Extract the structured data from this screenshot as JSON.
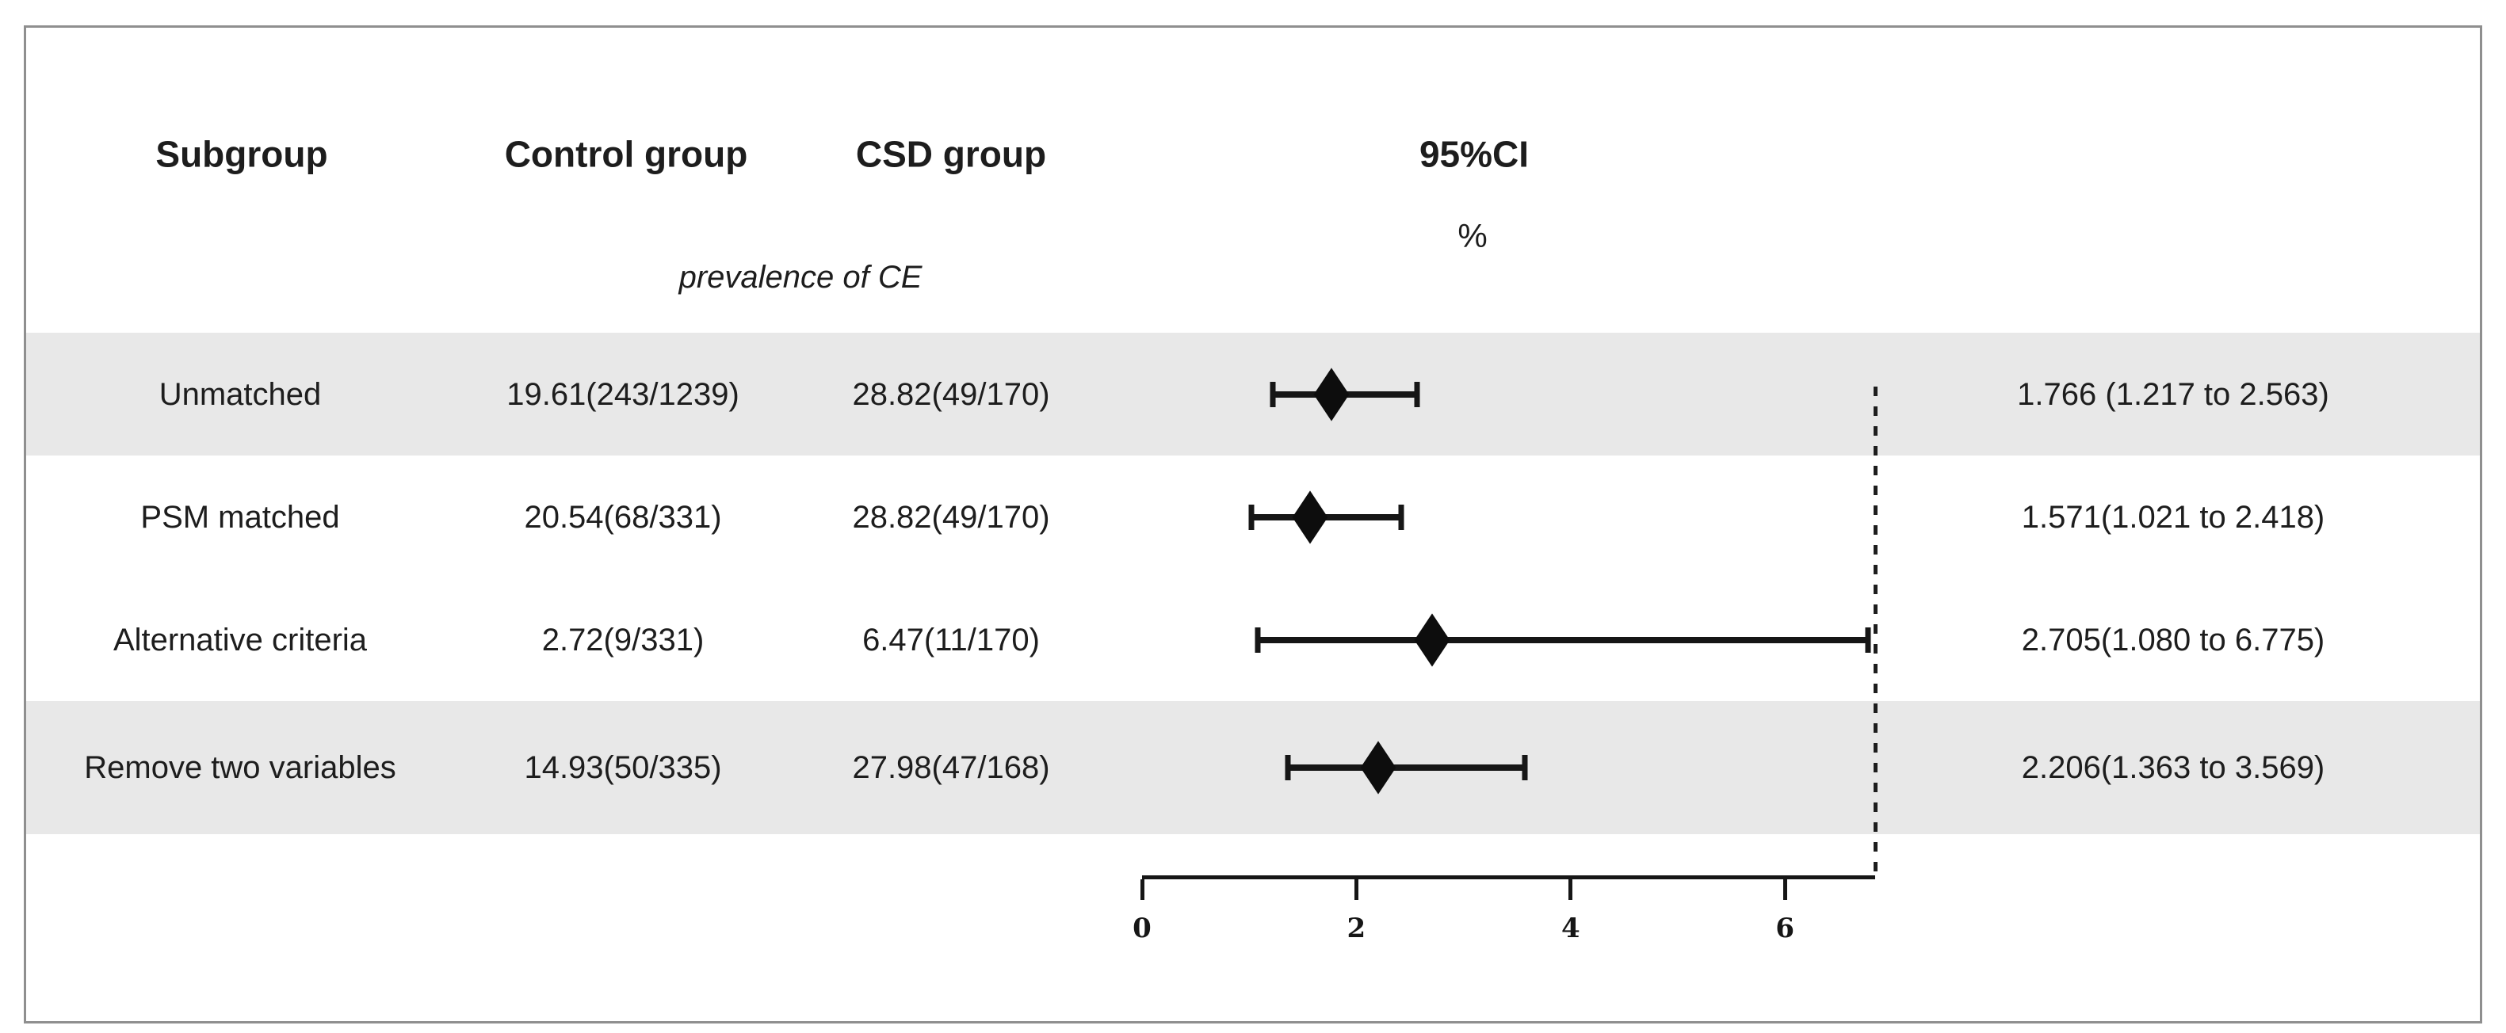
{
  "header": {
    "subgroup": "Subgroup",
    "control": "Control group",
    "csd": "CSD group",
    "ci": "95%CI",
    "sub_prevalence": "prevalence of CE",
    "sub_percent": "%"
  },
  "chart_data": {
    "type": "scatter",
    "variant": "forest-plot",
    "title": "",
    "xlabel": "%",
    "legend": "none",
    "grid": false,
    "rows": [
      {
        "subgroup": "Unmatched",
        "control_prevalence": "19.61(243/1239)",
        "csd_prevalence": "28.82(49/170)",
        "ci_text": "1.766 (1.217 to 2.563)",
        "estimate": 1.766,
        "ci_low": 1.217,
        "ci_high": 2.563,
        "shaded": true
      },
      {
        "subgroup": "PSM matched",
        "control_prevalence": "20.54(68/331)",
        "csd_prevalence": "28.82(49/170)",
        "ci_text": "1.571(1.021 to 2.418)",
        "estimate": 1.571,
        "ci_low": 1.021,
        "ci_high": 2.418,
        "shaded": false
      },
      {
        "subgroup": "Alternative criteria",
        "control_prevalence": "2.72(9/331)",
        "csd_prevalence": "6.47(11/170)",
        "ci_text": "2.705(1.080 to 6.775)",
        "estimate": 2.705,
        "ci_low": 1.08,
        "ci_high": 6.775,
        "shaded": false
      },
      {
        "subgroup": "Remove two variables",
        "control_prevalence": "14.93(50/335)",
        "csd_prevalence": "27.98(47/168)",
        "ci_text": "2.206(1.363 to 3.569)",
        "estimate": 2.206,
        "ci_low": 1.363,
        "ci_high": 3.569,
        "shaded": true
      }
    ],
    "axis": {
      "ticks": [
        0,
        2,
        4,
        6
      ],
      "min": 0,
      "max": 6.9,
      "position": "bottom"
    },
    "reference_line": {
      "style": "dotted",
      "position": "axis-end"
    }
  },
  "colors": {
    "band": "#e8e8e8",
    "ink": "#1d1d1d",
    "frame": "#8f8f8f",
    "marker": "#0d0d0d"
  }
}
